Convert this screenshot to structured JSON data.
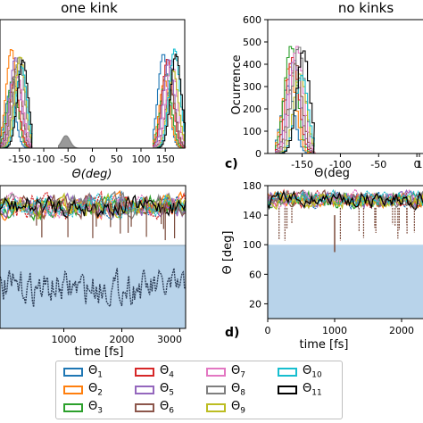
{
  "chart_data": [
    {
      "panel": "",
      "type": "histogram",
      "title": "one kink",
      "xlabel": "Θ(deg)",
      "ylabel": "",
      "xticks": [
        "-150",
        "-100",
        "-50",
        "0",
        "50",
        "100",
        "150"
      ],
      "xlim": [
        -190,
        190
      ],
      "ylim": [
        0,
        600
      ],
      "clusters": [
        {
          "range": [
            -190,
            -125
          ],
          "peak": 480,
          "series": [
            "Θ1",
            "Θ2",
            "Θ3",
            "Θ4",
            "Θ5",
            "Θ6",
            "Θ7",
            "Θ8",
            "Θ9",
            "Θ10",
            "Θ11"
          ]
        },
        {
          "range": [
            -70,
            -20
          ],
          "peak": 70,
          "series": [
            "Θ8"
          ]
        },
        {
          "range": [
            125,
            190
          ],
          "peak": 480,
          "series": [
            "Θ1",
            "Θ2",
            "Θ3",
            "Θ4",
            "Θ5",
            "Θ6",
            "Θ7",
            "Θ9",
            "Θ10",
            "Θ11"
          ]
        }
      ]
    },
    {
      "panel": "c)",
      "type": "histogram",
      "title": "no kinks",
      "xlabel": "Θ(deg",
      "ylabel": "Ocurrence",
      "xticks": [
        "-150",
        "-100",
        "-50",
        "0",
        "1"
      ],
      "yticks": [
        "0",
        "100",
        "200",
        "300",
        "400",
        "500",
        "600"
      ],
      "xlim": [
        -195,
        15
      ],
      "ylim": [
        0,
        600
      ],
      "clusters": [
        {
          "range": [
            -185,
            -135
          ],
          "peak": 500,
          "series": [
            "Θ1",
            "Θ2",
            "Θ3",
            "Θ4",
            "Θ5",
            "Θ6",
            "Θ7",
            "Θ8",
            "Θ9",
            "Θ10",
            "Θ11"
          ]
        }
      ]
    },
    {
      "panel": "",
      "type": "line",
      "xlabel": "time [fs]",
      "ylabel": "",
      "xticks": [
        "1000",
        "2000",
        "3000"
      ],
      "xlim": [
        -100,
        3100
      ],
      "upper_band": [
        140,
        180
      ],
      "lower_band": [
        -50,
        50
      ],
      "shaded_region": "lower"
    },
    {
      "panel": "d)",
      "type": "line",
      "xlabel": "time [fs]",
      "ylabel": "Θ [deg]",
      "xticks": [
        "0",
        "1000",
        "2000"
      ],
      "yticks": [
        "20",
        "60",
        "100",
        "140",
        "180"
      ],
      "xlim": [
        0,
        2400
      ],
      "ylim": [
        0,
        180
      ],
      "shaded_below": 100
    }
  ],
  "legend": {
    "items": [
      {
        "sym": "Θ",
        "sub": "1",
        "color": "#1f77b4"
      },
      {
        "sym": "Θ",
        "sub": "2",
        "color": "#ff7f0e"
      },
      {
        "sym": "Θ",
        "sub": "3",
        "color": "#2ca02c"
      },
      {
        "sym": "Θ",
        "sub": "4",
        "color": "#d62728"
      },
      {
        "sym": "Θ",
        "sub": "5",
        "color": "#9467bd"
      },
      {
        "sym": "Θ",
        "sub": "6",
        "color": "#8c564b"
      },
      {
        "sym": "Θ",
        "sub": "7",
        "color": "#e377c2"
      },
      {
        "sym": "Θ",
        "sub": "8",
        "color": "#7f7f7f"
      },
      {
        "sym": "Θ",
        "sub": "9",
        "color": "#bcbd22"
      },
      {
        "sym": "Θ",
        "sub": "10",
        "color": "#17becf"
      },
      {
        "sym": "Θ",
        "sub": "11",
        "color": "#000000"
      }
    ]
  },
  "colors": {
    "shade": "#b8d3ea",
    "dark_trace": "#2b3c55",
    "brown_trace": "#7a4a3a"
  }
}
